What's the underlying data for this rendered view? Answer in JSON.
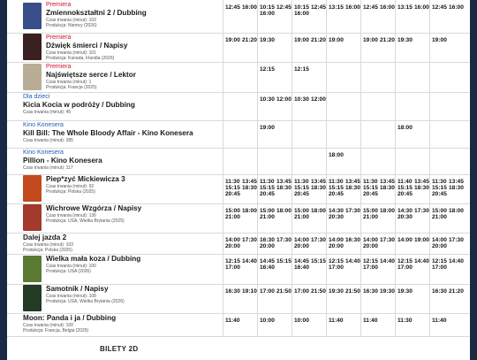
{
  "films": [
    {
      "tag": "Premiera",
      "tag_type": "premiera",
      "title": "Zmiennokształtni 2 / Dubbing",
      "meta": [
        "Czas trwania (minut): 103",
        "Produkcja: Niemcy (2026)"
      ],
      "poster": "#3a4e8a",
      "days": [
        [
          "12:45",
          "16:00"
        ],
        [
          "10:15 16:00",
          "12:45"
        ],
        [
          "10:15 16:00",
          "12:45"
        ],
        [
          "13:15",
          "16:00"
        ],
        [
          "12:45",
          "16:00"
        ],
        [
          "13:15",
          "16:00"
        ],
        [
          "12:45",
          "16:00"
        ]
      ]
    },
    {
      "tag": "Premiera",
      "tag_type": "premiera",
      "title": "Dźwięk śmierci / Napisy",
      "meta": [
        "Czas trwania (minut): 101",
        "Produkcja: Kanada, Irlandia (2026)"
      ],
      "poster": "#3b2020",
      "days": [
        [
          "19:00",
          "21:20"
        ],
        [
          "19:30"
        ],
        [
          "19:00",
          "21:20"
        ],
        [
          "19:00"
        ],
        [
          "19:00",
          "21:20"
        ],
        [
          "19:30"
        ],
        [
          "19:00"
        ]
      ]
    },
    {
      "tag": "Premiera",
      "tag_type": "premiera",
      "title": "Najświętsze serce / Lektor",
      "meta": [
        "Czas trwania (minut): 1",
        "Produkcja: Francja (2025)"
      ],
      "poster": "#b9ad95",
      "days": [
        [],
        [
          "12:15"
        ],
        [
          "12:15"
        ],
        [],
        [],
        [],
        []
      ]
    },
    {
      "tag": "Dla dzieci",
      "tag_type": "blue",
      "title": "Kicia Kocia w podróży / Dubbing",
      "meta": [
        "Czas trwania (minut): 45"
      ],
      "poster": null,
      "days": [
        [],
        [
          "10:30",
          "12:00"
        ],
        [
          "10:30",
          "12:00"
        ],
        [],
        [],
        [],
        []
      ]
    },
    {
      "tag": "Kino Konesera",
      "tag_type": "blue",
      "title": "Kill Bill: The Whole Bloody Affair - Kino Konesera",
      "meta": [
        "Czas trwania (minut): 285"
      ],
      "poster": null,
      "days": [
        [],
        [
          "19:00"
        ],
        [],
        [],
        [],
        [
          "18:00"
        ],
        []
      ]
    },
    {
      "tag": "Kino Konesera",
      "tag_type": "blue",
      "title": "Pillion - Kino Konesera",
      "meta": [
        "Czas trwania (minut): 117"
      ],
      "poster": null,
      "days": [
        [],
        [],
        [],
        [
          "18:00"
        ],
        [],
        [],
        []
      ]
    },
    {
      "tag": "",
      "tag_type": "",
      "title": "Piep*zyć Mickiewicza 3",
      "meta": [
        "Czas trwania (minut): 92",
        "Produkcja: Polska (2025)"
      ],
      "poster": "#c24a1c",
      "days": [
        [
          "11:30 15:15 20:45",
          "13:45 18:30"
        ],
        [
          "11:30 15:15 20:45",
          "13:45 18:30"
        ],
        [
          "11:30 15:15 20:45",
          "13:45 18:30"
        ],
        [
          "11:30 15:15 20:45",
          "13:45 18:30"
        ],
        [
          "11:30 15:15 20:45",
          "13:45 18:30"
        ],
        [
          "11:40 15:15 20:45",
          "13:45 18:30"
        ],
        [
          "11:30 15:15 20:45",
          "13:45 18:30"
        ]
      ]
    },
    {
      "tag": "",
      "tag_type": "",
      "title": "Wichrowe Wzgórza / Napisy",
      "meta": [
        "Czas trwania (minut): 136",
        "Produkcja: USA, Wielka Brytania (2025)"
      ],
      "poster": "#a33a2c",
      "days": [
        [
          "15:00 21:00",
          "18:00"
        ],
        [
          "15:00 21:00",
          "18:00"
        ],
        [
          "15:00 21:00",
          "18:00"
        ],
        [
          "14:30 20:30",
          "17:30"
        ],
        [
          "15:00 21:00",
          "18:00"
        ],
        [
          "14:30 20:30",
          "17:30"
        ],
        [
          "15:00 21:00",
          "18:00"
        ]
      ]
    },
    {
      "tag": "",
      "tag_type": "",
      "title": "Dalej jazda 2",
      "meta": [
        "Czas trwania (minut): 103",
        "Produkcja: Polska (2025)"
      ],
      "poster": null,
      "days": [
        [
          "14:00 20:00",
          "17:30"
        ],
        [
          "16:30 20:00",
          "17:30"
        ],
        [
          "14:00 20:00",
          "17:30"
        ],
        [
          "14:00 20:00",
          "16:30"
        ],
        [
          "14:00 20:00",
          "17:30"
        ],
        [
          "14:00",
          "19:00"
        ],
        [
          "14:00 20:00",
          "17:30"
        ]
      ]
    },
    {
      "tag": "",
      "tag_type": "",
      "title": "Wielka mała koza / Dubbing",
      "meta": [
        "Czas trwania (minut): 100",
        "Produkcja: USA (2026)"
      ],
      "poster": "#5a7a34",
      "days": [
        [
          "12:15 17:00",
          "14:40"
        ],
        [
          "14:45 16:40",
          "15:15"
        ],
        [
          "14:45 16:40",
          "15:15"
        ],
        [
          "12:15 17:00",
          "14:40"
        ],
        [
          "12:15 17:00",
          "14:40"
        ],
        [
          "12:15 17:00",
          "14:40"
        ],
        [
          "12:15 17:00",
          "14:40"
        ]
      ]
    },
    {
      "tag": "",
      "tag_type": "",
      "title": "Samotnik / Napisy",
      "meta": [
        "Czas trwania (minut): 108",
        "Produkcja: USA, Wielka Brytania (2026)"
      ],
      "poster": "#233a25",
      "days": [
        [
          "16:30",
          "19:10"
        ],
        [
          "17:00",
          "21:50"
        ],
        [
          "17:00",
          "21:50"
        ],
        [
          "19:30",
          "21:50"
        ],
        [
          "16:30",
          "19:30"
        ],
        [
          "19:30"
        ],
        [
          "16:30",
          "21:20"
        ]
      ]
    },
    {
      "tag": "",
      "tag_type": "",
      "title": "Moon: Panda i ja / Dubbing",
      "meta": [
        "Czas trwania (minut): 100",
        "Produkcja: Francja, Belgia (2025)"
      ],
      "poster": null,
      "days": [
        [
          "11:40"
        ],
        [
          "10:00"
        ],
        [
          "10:00"
        ],
        [
          "11:40"
        ],
        [
          "11:40"
        ],
        [
          "11:30"
        ],
        [
          "11:40"
        ]
      ]
    }
  ],
  "footer_label": "BILETY 2D"
}
